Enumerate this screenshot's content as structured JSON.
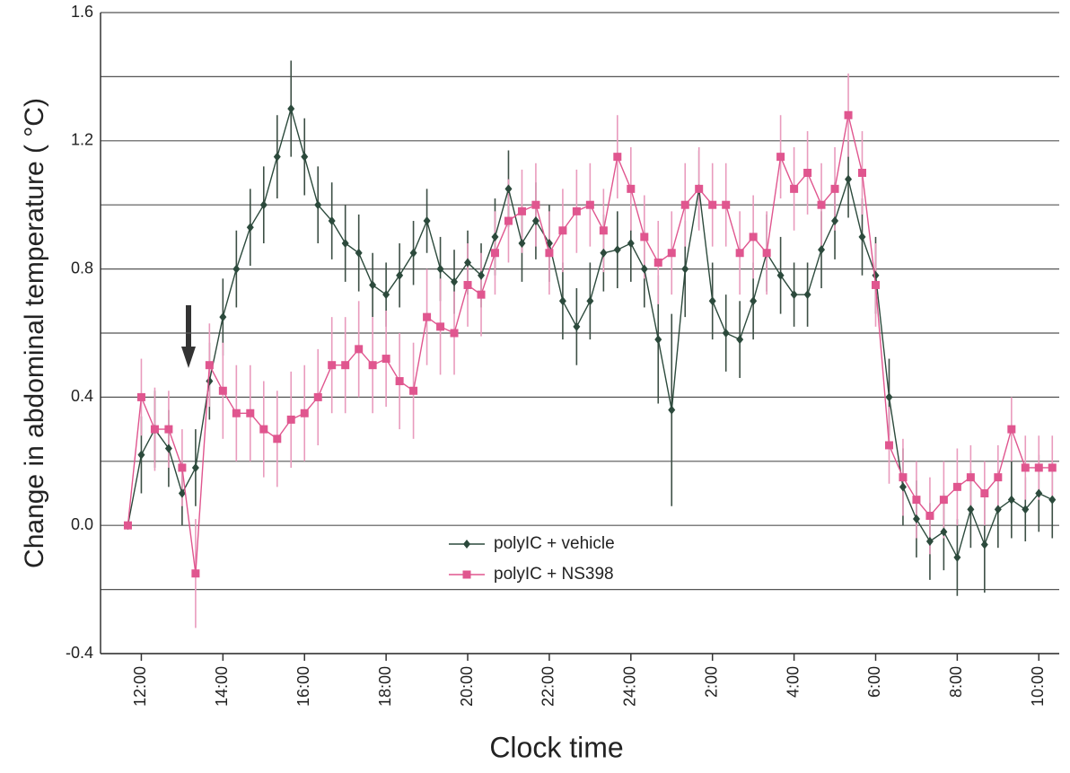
{
  "chart_data": {
    "type": "errorbar-line",
    "xlabel": "Clock time",
    "ylabel": "Change in abdominal temperature ( °C)",
    "xlim": [
      11,
      34.5
    ],
    "ylim": [
      -0.4,
      1.6
    ],
    "yticks": [
      -0.4,
      {
        "value": 0,
        "label": "0.0"
      },
      0.4,
      0.8,
      1.2,
      1.6
    ],
    "minor_grid": [
      -0.2,
      0.2,
      0.6,
      1.0,
      1.4
    ],
    "grid": true,
    "legend": "center",
    "xticks": [
      {
        "value": 12,
        "label": "12:00"
      },
      {
        "value": 14,
        "label": "14:00"
      },
      {
        "value": 16,
        "label": "16:00"
      },
      {
        "value": 18,
        "label": "18:00"
      },
      {
        "value": 20,
        "label": "20:00"
      },
      {
        "value": 22,
        "label": "22:00"
      },
      {
        "value": 24,
        "label": "24:00"
      },
      {
        "value": 26,
        "label": "2:00"
      },
      {
        "value": 28,
        "label": "4:00"
      },
      {
        "value": 30,
        "label": "6:00"
      },
      {
        "value": 32,
        "label": "8:00"
      },
      {
        "value": 34,
        "label": "10:00"
      }
    ],
    "x": [
      11.67,
      12,
      12.33,
      12.67,
      13,
      13.33,
      13.67,
      14,
      14.33,
      14.67,
      15,
      15.33,
      15.67,
      16,
      16.33,
      16.67,
      17,
      17.33,
      17.67,
      18,
      18.33,
      18.67,
      19,
      19.33,
      19.67,
      20,
      20.33,
      20.67,
      21,
      21.33,
      21.67,
      22,
      22.33,
      22.67,
      23,
      23.33,
      23.67,
      24,
      24.33,
      24.67,
      25,
      25.33,
      25.67,
      26,
      26.33,
      26.67,
      27,
      27.33,
      27.67,
      28,
      28.33,
      28.67,
      29,
      29.33,
      29.67,
      30,
      30.33,
      30.67,
      31,
      31.33,
      31.67,
      32,
      32.33,
      32.67,
      33,
      33.33,
      33.67,
      34,
      34.33
    ],
    "series": [
      {
        "name": "polyIC + vehicle",
        "color": "#2c4a3c",
        "error_color": "#3d4f45",
        "marker": "diamond",
        "values": [
          0,
          0.22,
          0.3,
          0.24,
          0.1,
          0.18,
          0.45,
          0.65,
          0.8,
          0.93,
          1.0,
          1.15,
          1.3,
          1.15,
          1.0,
          0.95,
          0.88,
          0.85,
          0.75,
          0.72,
          0.78,
          0.85,
          0.95,
          0.8,
          0.76,
          0.82,
          0.78,
          0.9,
          1.05,
          0.88,
          0.95,
          0.88,
          0.7,
          0.62,
          0.7,
          0.85,
          0.86,
          0.88,
          0.8,
          0.58,
          0.36,
          0.8,
          1.05,
          0.7,
          0.6,
          0.58,
          0.7,
          0.85,
          0.78,
          0.72,
          0.72,
          0.86,
          0.95,
          1.08,
          0.9,
          0.78,
          0.4,
          0.12,
          0.02,
          -0.05,
          -0.02,
          -0.1,
          0.05,
          -0.06,
          0.05,
          0.08,
          0.05,
          0.1,
          0.08
        ],
        "errors": [
          0,
          0.12,
          0.12,
          0.12,
          0.1,
          0.12,
          0.12,
          0.12,
          0.12,
          0.12,
          0.12,
          0.13,
          0.15,
          0.12,
          0.12,
          0.12,
          0.12,
          0.12,
          0.1,
          0.1,
          0.1,
          0.1,
          0.1,
          0.1,
          0.1,
          0.1,
          0.1,
          0.12,
          0.12,
          0.12,
          0.12,
          0.12,
          0.12,
          0.12,
          0.12,
          0.12,
          0.12,
          0.12,
          0.12,
          0.2,
          0.3,
          0.15,
          0.12,
          0.12,
          0.12,
          0.12,
          0.12,
          0.12,
          0.12,
          0.1,
          0.1,
          0.12,
          0.12,
          0.12,
          0.12,
          0.12,
          0.12,
          0.12,
          0.12,
          0.12,
          0.12,
          0.12,
          0.12,
          0.15,
          0.12,
          0.12,
          0.1,
          0.12,
          0.12
        ]
      },
      {
        "name": "polyIC + NS398",
        "color": "#e0568f",
        "error_color": "#e99bbd",
        "marker": "square",
        "values": [
          0,
          0.4,
          0.3,
          0.3,
          0.18,
          -0.15,
          0.5,
          0.42,
          0.35,
          0.35,
          0.3,
          0.27,
          0.33,
          0.35,
          0.4,
          0.5,
          0.5,
          0.55,
          0.5,
          0.52,
          0.45,
          0.42,
          0.65,
          0.62,
          0.6,
          0.75,
          0.72,
          0.85,
          0.95,
          0.98,
          1.0,
          0.85,
          0.92,
          0.98,
          1.0,
          0.92,
          1.15,
          1.05,
          0.9,
          0.82,
          0.85,
          1.0,
          1.05,
          1.0,
          1.0,
          0.85,
          0.9,
          0.85,
          1.15,
          1.05,
          1.1,
          1.0,
          1.05,
          1.28,
          1.1,
          0.75,
          0.25,
          0.15,
          0.08,
          0.03,
          0.08,
          0.12,
          0.15,
          0.1,
          0.15,
          0.3,
          0.18,
          0.18,
          0.18
        ],
        "errors": [
          0,
          0.12,
          0.13,
          0.12,
          0.12,
          0.17,
          0.13,
          0.15,
          0.15,
          0.15,
          0.15,
          0.15,
          0.15,
          0.15,
          0.15,
          0.15,
          0.15,
          0.15,
          0.15,
          0.15,
          0.15,
          0.15,
          0.15,
          0.15,
          0.13,
          0.13,
          0.13,
          0.13,
          0.13,
          0.13,
          0.13,
          0.13,
          0.13,
          0.13,
          0.13,
          0.13,
          0.13,
          0.13,
          0.13,
          0.13,
          0.13,
          0.13,
          0.13,
          0.13,
          0.13,
          0.13,
          0.13,
          0.13,
          0.13,
          0.13,
          0.13,
          0.13,
          0.13,
          0.13,
          0.13,
          0.13,
          0.12,
          0.12,
          0.12,
          0.12,
          0.12,
          0.12,
          0.1,
          0.1,
          0.1,
          0.1,
          0.1,
          0.1,
          0.1
        ]
      }
    ]
  }
}
